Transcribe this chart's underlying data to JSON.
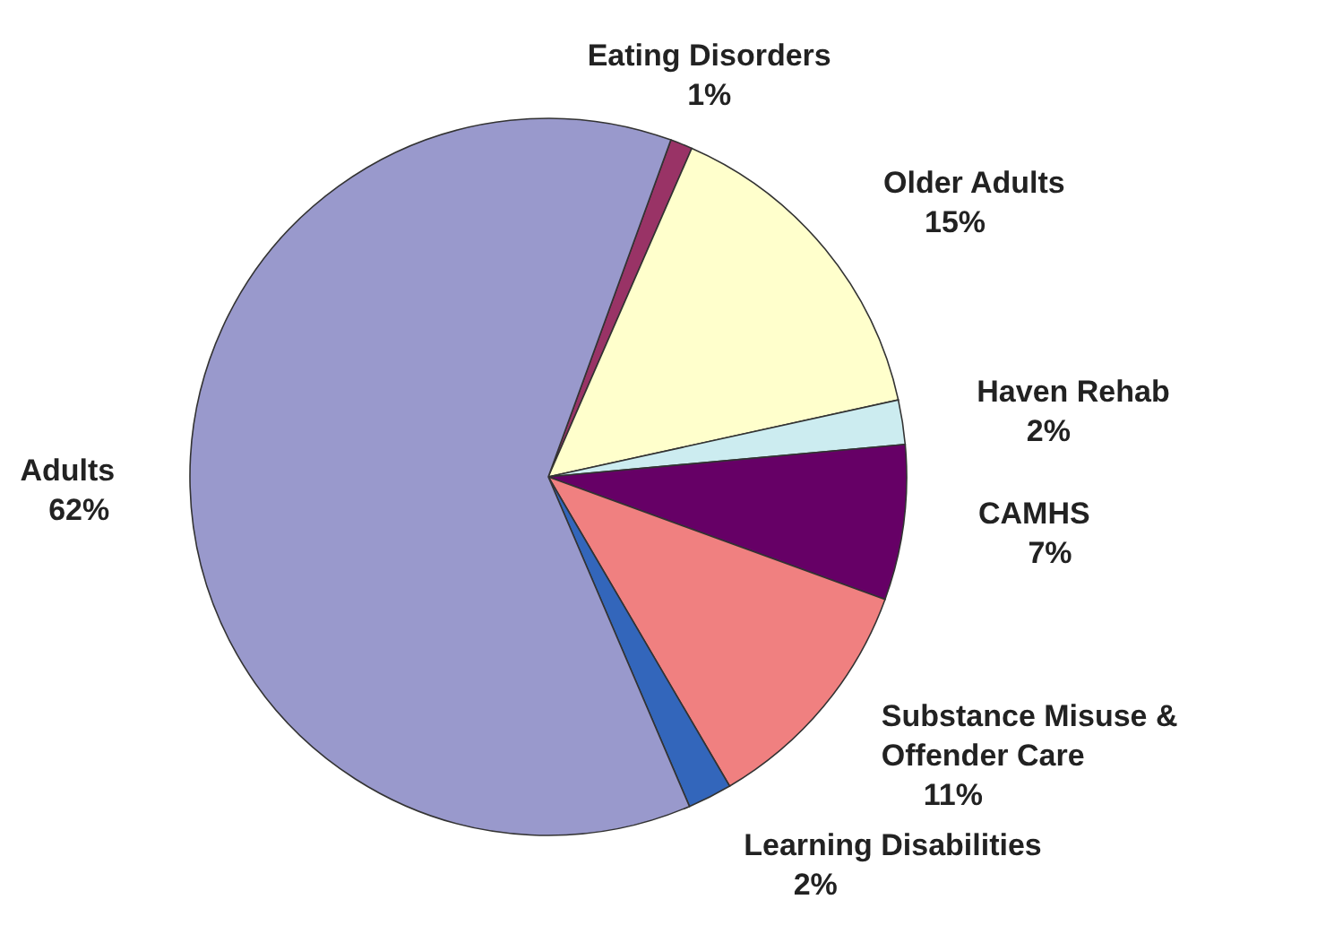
{
  "chart_data": {
    "type": "pie",
    "categories": [
      "Eating Disorders",
      "Older Adults",
      "Haven Rehab",
      "CAMHS",
      "Substance Misuse & Offender Care",
      "Learning Disabilities",
      "Adults"
    ],
    "values": [
      1,
      15,
      2,
      7,
      11,
      2,
      62
    ],
    "value_labels": [
      "1%",
      "15%",
      "2%",
      "7%",
      "11%",
      "2%",
      "62%"
    ],
    "colors": [
      "#993366",
      "#ffffcc",
      "#ccecf0",
      "#660066",
      "#f08080",
      "#3366bb",
      "#9999cc"
    ]
  }
}
